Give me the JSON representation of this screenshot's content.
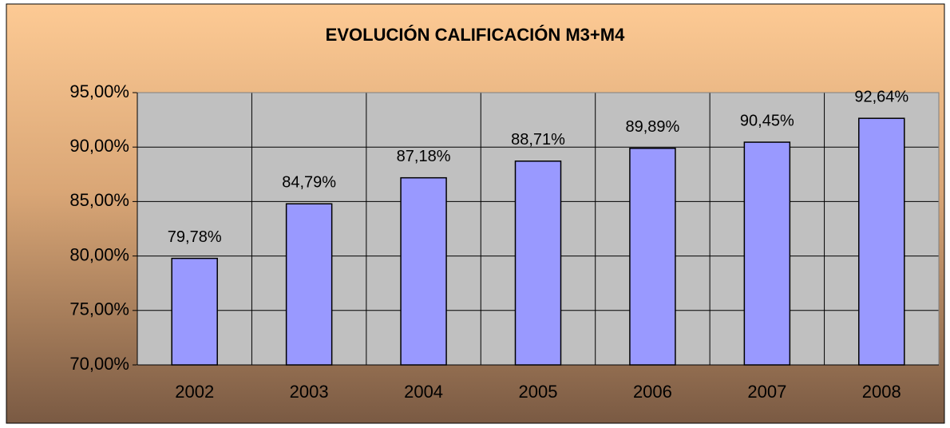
{
  "chart_data": {
    "type": "bar",
    "title": "EVOLUCIÓN CALIFICACIÓN M3+M4",
    "categories": [
      "2002",
      "2003",
      "2004",
      "2005",
      "2006",
      "2007",
      "2008"
    ],
    "values": [
      79.78,
      84.79,
      87.18,
      88.71,
      89.89,
      90.45,
      92.64
    ],
    "value_labels": [
      "79,78%",
      "84,79%",
      "87,18%",
      "88,71%",
      "89,89%",
      "90,45%",
      "92,64%"
    ],
    "color": "#9999ff",
    "ylim": [
      70,
      95
    ],
    "yticks": [
      {
        "value": 70,
        "label": "70,00%"
      },
      {
        "value": 75,
        "label": "75,00%"
      },
      {
        "value": 80,
        "label": "80,00%"
      },
      {
        "value": 85,
        "label": "85,00%"
      },
      {
        "value": 90,
        "label": "90,00%"
      },
      {
        "value": 95,
        "label": "95,00%"
      }
    ],
    "grid": true
  }
}
